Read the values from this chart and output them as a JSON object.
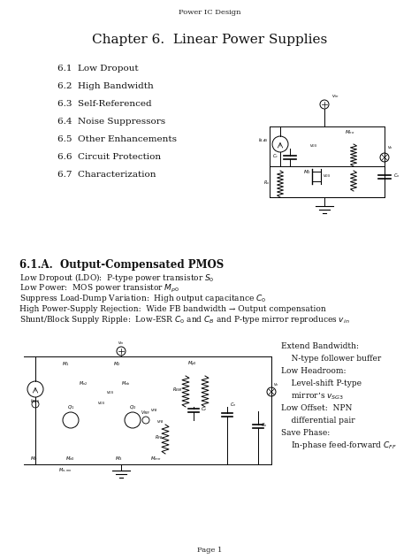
{
  "bg_color": "#ffffff",
  "header": "Power IC Design",
  "title": "Chapter 6.  Linear Power Supplies",
  "sections": [
    "6.1  Low Dropout",
    "6.2  High Bandwidth",
    "6.3  Self-Referenced",
    "6.4  Noise Suppressors",
    "6.5  Other Enhancements",
    "6.6  Circuit Protection",
    "6.7  Characterization"
  ],
  "section2_title": "6.1.A.  Output-Compensated PMOS",
  "bullets": [
    "Low Dropout (LDO):  P-type power transistor $S_0$",
    "Low Power:  MOS power transistor $M_{p0}$",
    "Suppress Load-Dump Variation:  High output capacitance $C_0$",
    "High Power-Supply Rejection:  Wide FB bandwidth → Output compensation",
    "Shunt/Block Supply Ripple:  Low-ESR $C_0$ and $C_B$ and P-type mirror reproduces $v_{in}$"
  ],
  "side_notes": [
    "Extend Bandwidth:",
    "    N-type follower buffer",
    "Low Headroom:",
    "    Level-shift P-type",
    "    mirror’s $v_{SG3}$",
    "Low Offset:  NPN",
    "    differential pair",
    "Save Phase:",
    "    In-phase feed-forward $C_{FF}$"
  ],
  "footer": "Page 1",
  "title_fontsize": 11,
  "header_fontsize": 6,
  "section_fontsize": 7.5,
  "bullet_fontsize": 6.5,
  "section2_fontsize": 8.5
}
